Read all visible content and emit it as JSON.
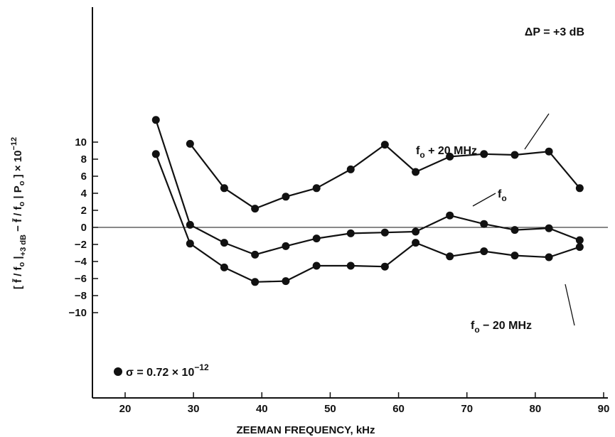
{
  "chart_data": {
    "type": "line",
    "title": "",
    "xlabel": "ZEEMAN FREQUENCY, kHz",
    "ylabel": "[f̄/fo|+3 dB − f̄/fo|Po] × 10^−12",
    "xlim": [
      15,
      90
    ],
    "ylim": [
      -10,
      12
    ],
    "xticks": [
      20,
      30,
      40,
      50,
      60,
      70,
      80,
      90
    ],
    "yticks": [
      -10,
      -8,
      -6,
      -4,
      -2,
      0,
      2,
      4,
      6,
      8,
      10
    ],
    "grid": false,
    "zero_line": true,
    "series": [
      {
        "name": "fo + 20 MHz",
        "x": [
          29.5,
          34.5,
          39,
          43.5,
          48,
          53,
          58,
          62.5,
          67.5,
          72.5,
          77,
          82,
          86.5
        ],
        "y": [
          9.8,
          4.6,
          2.2,
          3.6,
          4.6,
          6.8,
          9.7,
          6.5,
          8.3,
          8.6,
          8.5,
          8.9,
          4.6
        ]
      },
      {
        "name": "fo",
        "x": [
          24.5,
          29.5,
          34.5,
          39,
          43.5,
          48,
          53,
          58,
          62.5,
          67.5,
          72.5,
          77,
          82,
          86.5
        ],
        "y": [
          12.6,
          0.3,
          -1.8,
          -3.2,
          -2.2,
          -1.3,
          -0.7,
          -0.6,
          -0.5,
          1.4,
          0.4,
          -0.3,
          -0.1,
          -1.5
        ]
      },
      {
        "name": "fo − 20 MHz",
        "x": [
          24.5,
          29.5,
          34.5,
          39,
          43.5,
          48,
          53,
          58,
          62.5,
          67.5,
          72.5,
          77,
          82,
          86.5
        ],
        "y": [
          8.6,
          -1.9,
          -4.7,
          -6.4,
          -6.3,
          -4.5,
          -4.5,
          -4.6,
          -1.8,
          -3.4,
          -2.8,
          -3.3,
          -3.5,
          -2.3
        ]
      }
    ],
    "annotations": {
      "delta_p": "ΔP = +3 dB",
      "sigma": "σ = 0.72 × 10",
      "sigma_exp": "−12",
      "label_plus": "fo + 20 MHz",
      "label_fo": "fo",
      "label_minus": "fo − 20 MHz"
    }
  }
}
